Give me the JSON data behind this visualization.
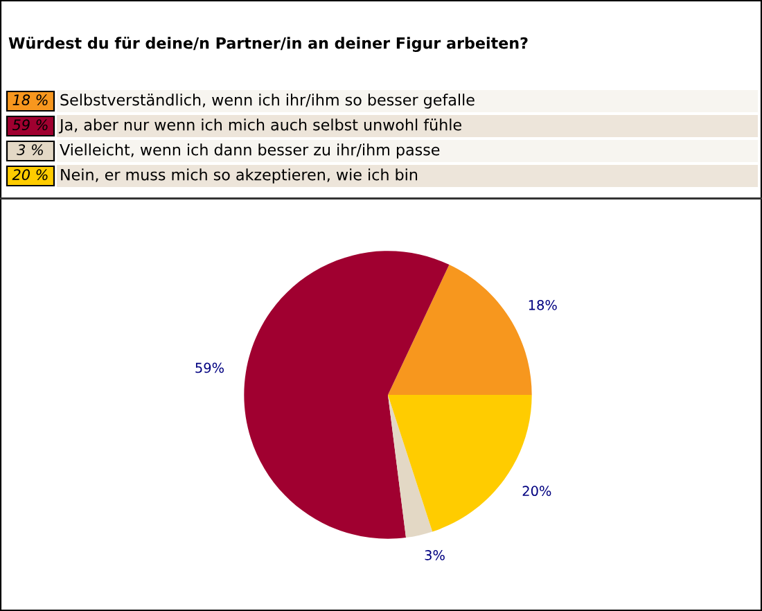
{
  "chart_data": {
    "type": "pie",
    "title": "Würdest du für deine/n Partner/in an deiner Figur arbeiten?",
    "categories": [
      "Selbstverständlich, wenn ich ihr/ihm so besser gefalle",
      "Ja, aber nur wenn ich mich auch selbst unwohl fühle",
      "Vielleicht, wenn ich dann besser zu ihr/ihm passe",
      "Nein, er muss mich so akzeptieren, wie ich bin"
    ],
    "values": [
      18,
      59,
      3,
      20
    ],
    "colors": [
      "#f7971e",
      "#a00030",
      "#e3d8c5",
      "#ffcc00"
    ],
    "value_labels": [
      "18%",
      "59%",
      "3%",
      "20%"
    ],
    "annotations": [
      "18 %",
      "59 %",
      "3 %",
      "20 %"
    ],
    "legend": "top"
  }
}
